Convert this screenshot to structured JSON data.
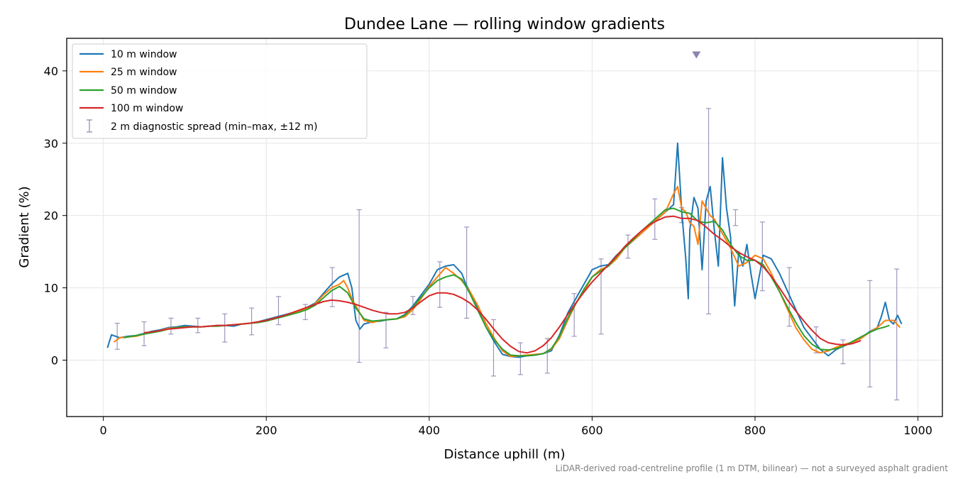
{
  "chart_data": {
    "type": "line",
    "title": "Dundee Lane — rolling window gradients",
    "xlabel": "Distance uphill (m)",
    "ylabel": "Gradient (%)",
    "xlim": [
      -45,
      1030
    ],
    "ylim": [
      -7.8,
      44.5
    ],
    "xticks": [
      0,
      200,
      400,
      600,
      800,
      1000
    ],
    "yticks": [
      0,
      10,
      20,
      30,
      40
    ],
    "grid": true,
    "legend_position": "top-left",
    "footnote": "LiDAR-derived road-centreline profile (1 m DTM, bilinear) — not a surveyed asphalt gradient",
    "series": [
      {
        "name": "10 m window",
        "color": "#1f77b4",
        "x": [
          5,
          10,
          15,
          20,
          30,
          40,
          50,
          60,
          70,
          80,
          90,
          100,
          110,
          120,
          130,
          140,
          150,
          160,
          170,
          180,
          190,
          200,
          210,
          220,
          230,
          240,
          250,
          260,
          270,
          280,
          290,
          300,
          305,
          310,
          315,
          320,
          330,
          340,
          350,
          360,
          370,
          380,
          390,
          400,
          410,
          420,
          430,
          440,
          445,
          450,
          460,
          470,
          480,
          490,
          500,
          510,
          520,
          530,
          540,
          550,
          560,
          570,
          580,
          590,
          600,
          610,
          620,
          630,
          640,
          650,
          660,
          670,
          680,
          690,
          700,
          705,
          710,
          715,
          718,
          720,
          725,
          730,
          735,
          740,
          745,
          750,
          755,
          760,
          765,
          770,
          775,
          780,
          785,
          790,
          795,
          800,
          810,
          820,
          830,
          840,
          850,
          860,
          870,
          880,
          890,
          900,
          910,
          920,
          930,
          940,
          950,
          955,
          960,
          965,
          970,
          975,
          980
        ],
        "values": [
          1.7,
          3.5,
          3.3,
          3.1,
          3.3,
          3.4,
          3.7,
          4.0,
          4.2,
          4.5,
          4.6,
          4.8,
          4.7,
          4.6,
          4.7,
          4.8,
          4.8,
          4.7,
          5.0,
          5.1,
          5.3,
          5.6,
          5.9,
          6.2,
          6.5,
          6.8,
          7.3,
          7.9,
          9.2,
          10.5,
          11.5,
          12.0,
          10.0,
          5.5,
          4.3,
          5.0,
          5.3,
          5.4,
          5.6,
          5.7,
          6.3,
          7.5,
          9.0,
          10.5,
          12.5,
          13.0,
          13.2,
          12.0,
          10.5,
          9.5,
          7.0,
          4.5,
          2.5,
          0.8,
          0.5,
          0.4,
          0.6,
          0.7,
          0.9,
          1.3,
          3.5,
          6.5,
          8.5,
          10.5,
          12.5,
          13.0,
          13.2,
          14.5,
          15.5,
          16.5,
          17.5,
          18.5,
          19.5,
          20.5,
          21.5,
          30.0,
          20.5,
          14.0,
          8.5,
          18.0,
          22.5,
          21.0,
          12.5,
          22.0,
          24.0,
          18.0,
          13.0,
          28.0,
          21.0,
          17.0,
          7.5,
          15.0,
          13.0,
          16.0,
          12.0,
          8.5,
          14.5,
          14.0,
          12.0,
          9.5,
          7.0,
          4.5,
          3.0,
          1.5,
          0.6,
          1.5,
          2.0,
          2.5,
          3.0,
          3.9,
          4.5,
          6.0,
          8.0,
          5.5,
          5.0,
          6.2,
          5.0
        ]
      },
      {
        "name": "25 m window",
        "color": "#ff7f0e",
        "x": [
          13,
          20,
          30,
          40,
          50,
          60,
          70,
          80,
          90,
          100,
          110,
          120,
          130,
          140,
          150,
          160,
          170,
          180,
          190,
          200,
          210,
          220,
          230,
          240,
          250,
          260,
          270,
          280,
          290,
          295,
          300,
          305,
          310,
          320,
          330,
          340,
          350,
          360,
          370,
          380,
          390,
          400,
          410,
          420,
          430,
          440,
          450,
          460,
          470,
          480,
          490,
          500,
          510,
          520,
          530,
          540,
          550,
          560,
          570,
          580,
          590,
          600,
          610,
          620,
          630,
          640,
          650,
          660,
          670,
          680,
          690,
          700,
          705,
          710,
          715,
          720,
          725,
          730,
          735,
          740,
          745,
          750,
          760,
          770,
          780,
          790,
          800,
          810,
          820,
          830,
          840,
          850,
          860,
          870,
          880,
          890,
          900,
          910,
          920,
          930,
          940,
          950,
          960,
          970,
          978
        ],
        "values": [
          2.5,
          3.1,
          3.2,
          3.3,
          3.6,
          3.9,
          4.1,
          4.4,
          4.5,
          4.6,
          4.6,
          4.6,
          4.7,
          4.7,
          4.8,
          4.9,
          5.0,
          5.1,
          5.2,
          5.5,
          5.8,
          6.0,
          6.4,
          6.7,
          7.1,
          7.8,
          9.0,
          10.0,
          10.5,
          11.0,
          10.0,
          8.5,
          7.5,
          5.5,
          5.2,
          5.5,
          5.6,
          5.7,
          6.0,
          7.0,
          8.5,
          10.2,
          11.5,
          12.8,
          12.0,
          11.0,
          9.5,
          7.5,
          5.0,
          3.0,
          1.3,
          0.5,
          0.6,
          0.7,
          0.8,
          0.9,
          1.5,
          3.0,
          5.5,
          7.8,
          9.5,
          11.5,
          12.5,
          13.0,
          14.0,
          15.5,
          16.5,
          17.5,
          18.5,
          19.5,
          20.5,
          23.0,
          24.0,
          21.0,
          20.5,
          19.0,
          18.5,
          16.0,
          22.0,
          21.0,
          20.0,
          19.5,
          17.5,
          15.5,
          13.0,
          13.5,
          14.5,
          14.0,
          12.0,
          9.5,
          7.0,
          4.5,
          2.8,
          1.5,
          1.0,
          1.3,
          1.8,
          2.2,
          2.5,
          3.0,
          3.8,
          4.5,
          5.5,
          5.5,
          4.5
        ]
      },
      {
        "name": "50 m window",
        "color": "#2ca02c",
        "x": [
          25,
          30,
          40,
          50,
          60,
          70,
          80,
          90,
          100,
          110,
          120,
          130,
          140,
          150,
          160,
          170,
          180,
          190,
          200,
          210,
          220,
          230,
          240,
          250,
          260,
          270,
          280,
          290,
          300,
          310,
          320,
          330,
          340,
          350,
          360,
          370,
          380,
          390,
          400,
          410,
          420,
          430,
          440,
          450,
          460,
          470,
          480,
          490,
          500,
          510,
          520,
          530,
          540,
          550,
          560,
          570,
          580,
          590,
          600,
          610,
          620,
          630,
          640,
          650,
          660,
          670,
          680,
          690,
          700,
          710,
          720,
          730,
          740,
          750,
          760,
          770,
          780,
          790,
          800,
          810,
          820,
          830,
          840,
          850,
          860,
          870,
          880,
          890,
          900,
          910,
          920,
          930,
          940,
          950,
          960,
          965
        ],
        "values": [
          3.1,
          3.2,
          3.4,
          3.6,
          3.8,
          4.0,
          4.3,
          4.5,
          4.6,
          4.6,
          4.6,
          4.7,
          4.7,
          4.8,
          4.9,
          5.0,
          5.1,
          5.2,
          5.4,
          5.7,
          6.0,
          6.3,
          6.6,
          7.0,
          7.6,
          8.6,
          9.6,
          10.2,
          9.3,
          7.2,
          5.7,
          5.4,
          5.5,
          5.6,
          5.7,
          6.2,
          7.3,
          8.7,
          10.0,
          11.0,
          11.5,
          11.8,
          11.2,
          9.2,
          6.8,
          4.5,
          2.8,
          1.5,
          0.7,
          0.6,
          0.6,
          0.7,
          0.9,
          1.6,
          3.3,
          5.8,
          7.8,
          9.8,
          11.5,
          12.3,
          13.0,
          14.3,
          15.5,
          16.6,
          17.8,
          18.8,
          19.8,
          20.8,
          21.0,
          20.5,
          20.3,
          19.2,
          19.0,
          19.2,
          18.0,
          16.0,
          14.5,
          13.8,
          13.8,
          13.2,
          11.5,
          9.5,
          7.3,
          5.2,
          3.4,
          2.2,
          1.5,
          1.4,
          1.6,
          2.0,
          2.6,
          3.2,
          3.8,
          4.3,
          4.6,
          4.8
        ]
      },
      {
        "name": "100 m window",
        "color": "#d62728",
        "x": [
          50,
          60,
          70,
          80,
          90,
          100,
          110,
          120,
          130,
          140,
          150,
          160,
          170,
          180,
          190,
          200,
          210,
          220,
          230,
          240,
          250,
          260,
          270,
          280,
          290,
          300,
          310,
          320,
          330,
          340,
          350,
          360,
          370,
          380,
          390,
          400,
          410,
          420,
          430,
          440,
          450,
          460,
          470,
          480,
          490,
          500,
          510,
          520,
          530,
          540,
          550,
          560,
          570,
          580,
          590,
          600,
          610,
          620,
          630,
          640,
          650,
          660,
          670,
          680,
          690,
          700,
          710,
          720,
          730,
          740,
          750,
          760,
          770,
          780,
          790,
          800,
          810,
          820,
          830,
          840,
          850,
          860,
          870,
          880,
          890,
          900,
          910,
          920,
          930
        ],
        "values": [
          3.8,
          3.9,
          4.1,
          4.3,
          4.4,
          4.5,
          4.6,
          4.6,
          4.7,
          4.8,
          4.8,
          4.9,
          5.0,
          5.1,
          5.3,
          5.5,
          5.8,
          6.1,
          6.5,
          6.9,
          7.3,
          7.7,
          8.1,
          8.3,
          8.2,
          8.0,
          7.7,
          7.3,
          6.9,
          6.6,
          6.4,
          6.4,
          6.6,
          7.2,
          8.1,
          8.9,
          9.3,
          9.3,
          9.1,
          8.6,
          7.9,
          6.9,
          5.6,
          4.2,
          2.9,
          1.9,
          1.2,
          1.0,
          1.3,
          2.0,
          3.1,
          4.6,
          6.3,
          7.9,
          9.4,
          10.8,
          12.0,
          13.2,
          14.4,
          15.7,
          16.8,
          17.8,
          18.7,
          19.3,
          19.8,
          19.9,
          19.6,
          19.6,
          19.3,
          18.4,
          17.4,
          16.6,
          15.7,
          14.9,
          14.3,
          13.8,
          12.9,
          11.6,
          10.0,
          8.3,
          6.8,
          5.4,
          4.1,
          3.0,
          2.4,
          2.2,
          2.1,
          2.3,
          2.7
        ]
      }
    ],
    "diagnostic": {
      "name": "2 m diagnostic spread (min–max, ±12 m)",
      "color": "#8f84b0",
      "x": [
        17,
        50,
        83,
        116,
        149,
        182,
        215,
        248,
        281,
        314,
        347,
        380,
        413,
        446,
        479,
        512,
        545,
        578,
        611,
        644,
        677,
        710,
        743,
        776,
        809,
        842,
        875,
        908,
        941,
        974
      ],
      "low": [
        1.5,
        2.0,
        3.6,
        3.8,
        2.5,
        3.5,
        4.9,
        5.6,
        7.4,
        -0.3,
        1.7,
        6.3,
        7.3,
        5.8,
        -2.2,
        -2.0,
        -1.8,
        3.3,
        3.6,
        14.1,
        16.7,
        19.0,
        6.4,
        18.6,
        9.6,
        4.7,
        1.0,
        -0.5,
        -3.7,
        -5.5
      ],
      "high": [
        5.1,
        5.3,
        5.8,
        5.8,
        6.4,
        7.2,
        8.8,
        7.7,
        12.8,
        20.8,
        6.6,
        8.8,
        13.6,
        18.4,
        5.6,
        2.4,
        3.0,
        9.2,
        14.0,
        17.3,
        22.3,
        21.1,
        34.8,
        20.8,
        19.1,
        12.8,
        4.6,
        2.8,
        11.0,
        12.6
      ]
    },
    "annotation_marker": {
      "x": 728,
      "y": 42.2,
      "color": "#8f84b0"
    }
  }
}
